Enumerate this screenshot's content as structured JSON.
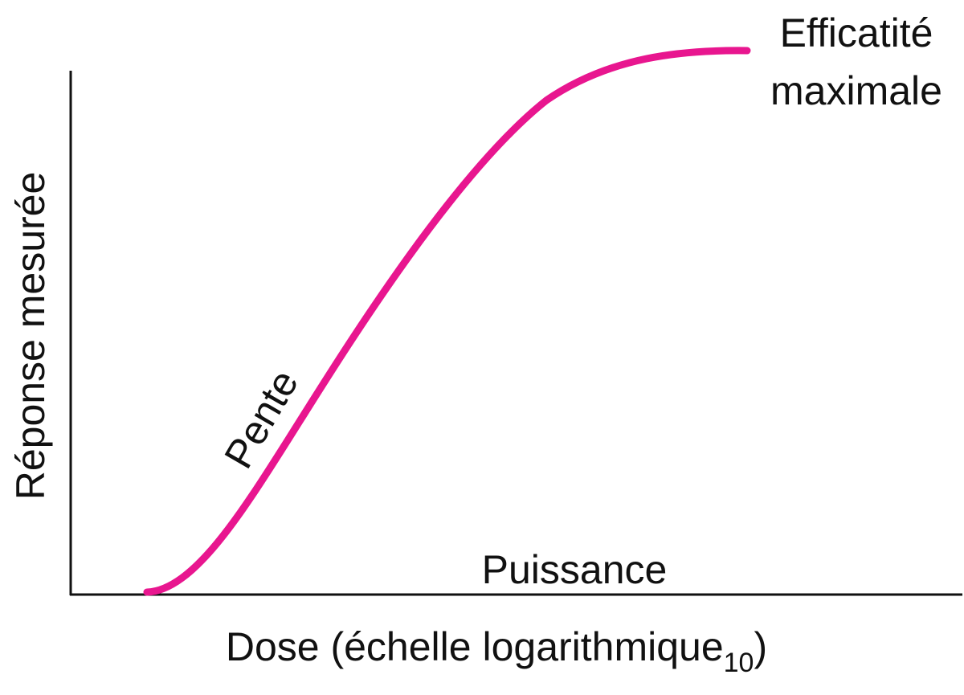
{
  "annotations": {
    "efficacy": [
      "Efficatité",
      "maximale"
    ],
    "slope": "Pente",
    "potency": "Puissance"
  },
  "axes": {
    "y_label": "Réponse mesurée",
    "x_label": "Dose (échelle logarithmique",
    "x_label_subscript": "10",
    "x_label_end": ")"
  }
}
